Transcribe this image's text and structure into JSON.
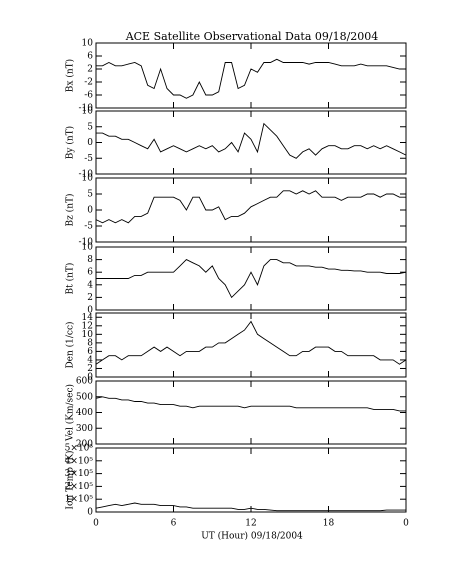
{
  "title": "ACE Satellite Observational Data   09/18/2004",
  "xlabel": "UT (Hour)  09/18/2004",
  "xlim": [
    0,
    24
  ],
  "xticks": [
    0,
    6,
    12,
    18,
    {
      "value": 24,
      "label": "0"
    }
  ],
  "x": [
    0,
    0.5,
    1,
    1.5,
    2,
    2.5,
    3,
    3.5,
    4,
    4.5,
    5,
    5.5,
    6,
    6.5,
    7,
    7.5,
    8,
    8.5,
    9,
    9.5,
    10,
    10.5,
    11,
    11.5,
    12,
    12.5,
    13,
    13.5,
    14,
    14.5,
    15,
    15.5,
    16,
    16.5,
    17,
    17.5,
    18,
    18.5,
    19,
    19.5,
    20,
    20.5,
    21,
    21.5,
    22,
    22.5,
    23,
    23.5,
    24
  ],
  "chart_data": [
    {
      "type": "line",
      "ylabel": "Bx (nT)",
      "color": "#000000",
      "ylim": [
        -10,
        10
      ],
      "yticks": [
        -10,
        -6,
        -2,
        2,
        6,
        10
      ],
      "values": [
        3,
        3,
        4,
        3,
        3,
        3.5,
        4,
        3,
        -3,
        -4,
        2,
        -4,
        -6,
        -6,
        -7,
        -6,
        -2,
        -6,
        -6,
        -5,
        4,
        4,
        -4,
        -3,
        2,
        1,
        4,
        4,
        5,
        4,
        4,
        4,
        4,
        3.5,
        4,
        4,
        4,
        3.5,
        3,
        3,
        3,
        3.5,
        3,
        3,
        3,
        3,
        2.5,
        2,
        2
      ]
    },
    {
      "type": "line",
      "ylabel": "By (nT)",
      "color": "#000000",
      "ylim": [
        -10,
        10
      ],
      "yticks": [
        -10,
        -5,
        0,
        5,
        10
      ],
      "values": [
        3,
        3,
        2,
        2,
        1,
        1,
        0,
        -1,
        -2,
        1,
        -3,
        -2,
        -1,
        -2,
        -3,
        -2,
        -1,
        -2,
        -1,
        -3,
        -2,
        0,
        -3,
        3,
        1,
        -3,
        6,
        4,
        2,
        -1,
        -4,
        -5,
        -3,
        -2,
        -4,
        -2,
        -1,
        -1,
        -2,
        -2,
        -1,
        -1,
        -2,
        -1,
        -2,
        -1,
        -2,
        -3,
        -4
      ]
    },
    {
      "type": "line",
      "ylabel": "Bz (nT)",
      "color": "#000000",
      "ylim": [
        -10,
        10
      ],
      "yticks": [
        -10,
        -5,
        0,
        5,
        10
      ],
      "values": [
        -3,
        -4,
        -3,
        -4,
        -3,
        -4,
        -2,
        -2,
        -1,
        4,
        4,
        4,
        4,
        3,
        0,
        4,
        4,
        0,
        0,
        1,
        -3,
        -2,
        -2,
        -1,
        1,
        2,
        3,
        4,
        4,
        6,
        6,
        5,
        6,
        5,
        6,
        4,
        4,
        4,
        3,
        4,
        4,
        4,
        5,
        5,
        4,
        5,
        5,
        4,
        4
      ]
    },
    {
      "type": "line",
      "ylabel": "Bt (nT)",
      "color": "#000000",
      "ylim": [
        0,
        10
      ],
      "yticks": [
        0,
        2,
        4,
        6,
        8,
        10
      ],
      "values": [
        5,
        5,
        5,
        5,
        5,
        5,
        5.5,
        5.5,
        6,
        6,
        6,
        6,
        6,
        7,
        8,
        7.5,
        7,
        6,
        7,
        5,
        4,
        2,
        3,
        4,
        6,
        4,
        7,
        8,
        8,
        7.5,
        7.5,
        7,
        7,
        7,
        6.8,
        6.8,
        6.5,
        6.5,
        6.3,
        6.3,
        6.2,
        6.2,
        6,
        6,
        6,
        5.8,
        5.8,
        5.8,
        6
      ]
    },
    {
      "type": "line",
      "ylabel": "Den (1/cc)",
      "color": "#000000",
      "ylim": [
        0,
        15
      ],
      "yticks": [
        0,
        2,
        4,
        6,
        8,
        10,
        12,
        14
      ],
      "values": [
        3,
        4,
        5,
        5,
        4,
        5,
        5,
        5,
        6,
        7,
        6,
        7,
        6,
        5,
        6,
        6,
        6,
        7,
        7,
        8,
        8,
        9,
        10,
        11,
        13,
        10,
        9,
        8,
        7,
        6,
        5,
        5,
        6,
        6,
        7,
        7,
        7,
        6,
        6,
        5,
        5,
        5,
        5,
        5,
        4,
        4,
        4,
        3,
        4
      ]
    },
    {
      "type": "line",
      "ylabel": "Vel (Km/sec)",
      "color": "#000000",
      "ylim": [
        200,
        600
      ],
      "yticks": [
        200,
        300,
        400,
        500,
        600
      ],
      "values": [
        490,
        500,
        490,
        490,
        480,
        480,
        470,
        470,
        460,
        460,
        450,
        450,
        450,
        440,
        440,
        430,
        440,
        440,
        440,
        440,
        440,
        440,
        440,
        430,
        440,
        440,
        440,
        440,
        440,
        440,
        440,
        430,
        430,
        430,
        430,
        430,
        430,
        430,
        430,
        430,
        430,
        430,
        430,
        420,
        420,
        420,
        420,
        410,
        410
      ]
    },
    {
      "type": "line",
      "ylabel": "Ion Temp (K)",
      "color": "#000000",
      "ylim": [
        0,
        500000
      ],
      "yticks": [
        0,
        {
          "value": 100000,
          "label": "1×10⁵"
        },
        {
          "value": 200000,
          "label": "2×10⁵"
        },
        {
          "value": 300000,
          "label": "3×10⁵"
        },
        {
          "value": 400000,
          "label": "4×10⁵"
        },
        {
          "value": 500000,
          "label": "5×10⁵"
        }
      ],
      "values": [
        30000,
        40000,
        50000,
        60000,
        50000,
        60000,
        70000,
        60000,
        60000,
        60000,
        50000,
        50000,
        50000,
        40000,
        40000,
        30000,
        30000,
        30000,
        30000,
        30000,
        30000,
        30000,
        20000,
        20000,
        30000,
        20000,
        20000,
        15000,
        10000,
        10000,
        10000,
        10000,
        10000,
        10000,
        10000,
        10000,
        10000,
        10000,
        10000,
        10000,
        10000,
        10000,
        10000,
        10000,
        10000,
        15000,
        15000,
        15000,
        15000
      ]
    }
  ]
}
